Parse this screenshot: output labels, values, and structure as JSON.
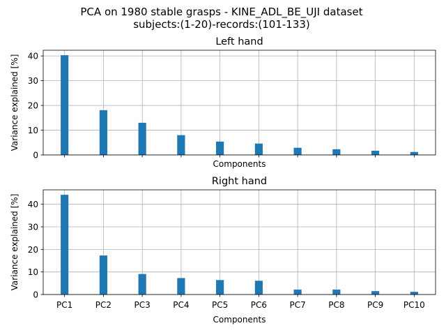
{
  "suptitle_line1": "PCA on 1980 stable grasps - KINE_ADL_BE_UJI dataset",
  "suptitle_line2": "subjects:(1-20)-records:(101-133)",
  "chart_data": [
    {
      "type": "bar",
      "title": "Left hand",
      "xlabel": "Components",
      "ylabel": "Variance explained [%]",
      "categories": [
        "PC1",
        "PC2",
        "PC3",
        "PC4",
        "PC5",
        "PC6",
        "PC7",
        "PC8",
        "PC9",
        "PC10"
      ],
      "values": [
        40.3,
        18.1,
        13.0,
        8.0,
        5.4,
        4.6,
        2.9,
        2.3,
        1.7,
        1.2
      ],
      "ylim": [
        0,
        42.3
      ],
      "yticks": [
        0,
        10,
        20,
        30,
        40
      ],
      "show_xticklabels": false,
      "grid": true,
      "bar_color": "#1f77b4"
    },
    {
      "type": "bar",
      "title": "Right hand",
      "xlabel": "Components",
      "ylabel": "Variance explained [%]",
      "categories": [
        "PC1",
        "PC2",
        "PC3",
        "PC4",
        "PC5",
        "PC6",
        "PC7",
        "PC8",
        "PC9",
        "PC10"
      ],
      "values": [
        44.2,
        17.3,
        9.1,
        7.3,
        6.4,
        6.1,
        2.2,
        2.2,
        1.5,
        1.2
      ],
      "ylim": [
        0,
        46.4
      ],
      "yticks": [
        0,
        10,
        20,
        30,
        40
      ],
      "show_xticklabels": true,
      "grid": true,
      "bar_color": "#1f77b4"
    }
  ]
}
